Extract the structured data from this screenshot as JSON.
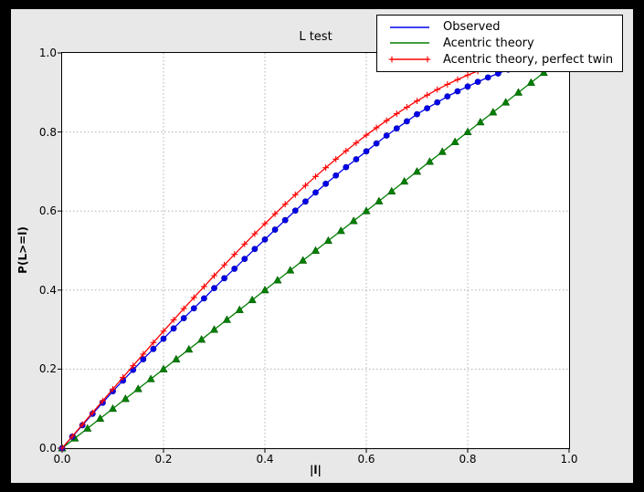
{
  "chart_data": {
    "type": "line",
    "title": "L test",
    "xlabel": "|l|",
    "ylabel": "P(L>=l)",
    "xlim": [
      0.0,
      1.0
    ],
    "ylim": [
      0.0,
      1.0
    ],
    "xticks": [
      "0.0",
      "0.2",
      "0.4",
      "0.6",
      "0.8",
      "1.0"
    ],
    "yticks": [
      "0.0",
      "0.2",
      "0.4",
      "0.6",
      "0.8",
      "1.0"
    ],
    "grid": true,
    "grid_style": "dotted",
    "legend_position": "upper right",
    "colors": {
      "observed": "#0000ee",
      "acentric_theory": "#007f00",
      "acentric_theory_perfect_twin": "#ff0000",
      "figure_background": "#e8e8e8",
      "axes_background": "#ffffff",
      "grid_color": "#b0b0b0",
      "outer_frame": "#000000"
    },
    "series": [
      {
        "name": "Acentric theory",
        "color": "#007f00",
        "marker": "triangle",
        "legend_marker": "none",
        "x": [
          0,
          0.025,
          0.05,
          0.075,
          0.1,
          0.125,
          0.15,
          0.175,
          0.2,
          0.225,
          0.25,
          0.275,
          0.3,
          0.325,
          0.35,
          0.375,
          0.4,
          0.425,
          0.45,
          0.475,
          0.5,
          0.525,
          0.55,
          0.575,
          0.6,
          0.625,
          0.65,
          0.675,
          0.7,
          0.725,
          0.75,
          0.775,
          0.8,
          0.825,
          0.85,
          0.875,
          0.9,
          0.925,
          0.95,
          0.975,
          1.0
        ],
        "y": [
          0,
          0.025,
          0.05,
          0.075,
          0.1,
          0.125,
          0.15,
          0.175,
          0.2,
          0.225,
          0.25,
          0.275,
          0.3,
          0.325,
          0.35,
          0.375,
          0.4,
          0.425,
          0.45,
          0.475,
          0.5,
          0.525,
          0.55,
          0.575,
          0.6,
          0.625,
          0.65,
          0.675,
          0.7,
          0.725,
          0.75,
          0.775,
          0.8,
          0.825,
          0.85,
          0.875,
          0.9,
          0.925,
          0.95,
          0.975,
          1.0
        ]
      },
      {
        "name": "Observed",
        "color": "#0000ee",
        "marker": "circle",
        "legend_marker": "none",
        "x": [
          0,
          0.02,
          0.04,
          0.06,
          0.08,
          0.1,
          0.12,
          0.14,
          0.16,
          0.18,
          0.2,
          0.22,
          0.24,
          0.26,
          0.28,
          0.3,
          0.32,
          0.34,
          0.36,
          0.38,
          0.4,
          0.42,
          0.44,
          0.46,
          0.48,
          0.5,
          0.52,
          0.54,
          0.56,
          0.58,
          0.6,
          0.62,
          0.64,
          0.66,
          0.68,
          0.7,
          0.72,
          0.74,
          0.76,
          0.78,
          0.8,
          0.82,
          0.84,
          0.86,
          0.88,
          0.9,
          0.92,
          0.94,
          0.96,
          0.98,
          1.0
        ],
        "y": [
          0,
          0.029,
          0.058,
          0.087,
          0.115,
          0.144,
          0.171,
          0.198,
          0.225,
          0.251,
          0.277,
          0.303,
          0.329,
          0.354,
          0.379,
          0.405,
          0.43,
          0.454,
          0.479,
          0.504,
          0.528,
          0.553,
          0.577,
          0.601,
          0.624,
          0.647,
          0.669,
          0.69,
          0.711,
          0.731,
          0.751,
          0.771,
          0.791,
          0.809,
          0.827,
          0.845,
          0.86,
          0.875,
          0.89,
          0.903,
          0.915,
          0.927,
          0.938,
          0.948,
          0.958,
          0.965,
          0.972,
          0.979,
          0.986,
          0.993,
          1.0
        ]
      },
      {
        "name": "Acentric theory, perfect twin",
        "color": "#ff0000",
        "marker": "plus",
        "legend_marker": "plus",
        "x": [
          0,
          0.02,
          0.04,
          0.06,
          0.08,
          0.1,
          0.12,
          0.14,
          0.16,
          0.18,
          0.2,
          0.22,
          0.24,
          0.26,
          0.28,
          0.3,
          0.32,
          0.34,
          0.36,
          0.38,
          0.4,
          0.42,
          0.44,
          0.46,
          0.48,
          0.5,
          0.52,
          0.54,
          0.56,
          0.58,
          0.6,
          0.62,
          0.64,
          0.66,
          0.68,
          0.7,
          0.72,
          0.74,
          0.76,
          0.78,
          0.8,
          0.82,
          0.84,
          0.86,
          0.88,
          0.9,
          0.92,
          0.94,
          0.96,
          0.98,
          1.0
        ],
        "y": [
          0,
          0.03,
          0.06,
          0.0899,
          0.1197,
          0.1495,
          0.1791,
          0.2086,
          0.238,
          0.2671,
          0.296,
          0.3247,
          0.3531,
          0.3812,
          0.409,
          0.4365,
          0.4636,
          0.4903,
          0.5167,
          0.5426,
          0.568,
          0.593,
          0.6174,
          0.6413,
          0.6647,
          0.6875,
          0.7097,
          0.7313,
          0.7522,
          0.7724,
          0.792,
          0.8108,
          0.8289,
          0.8463,
          0.8628,
          0.8785,
          0.8934,
          0.9074,
          0.9205,
          0.9327,
          0.944,
          0.9543,
          0.9636,
          0.972,
          0.9793,
          0.9855,
          0.9907,
          0.9947,
          0.9976,
          0.9994,
          1.0
        ]
      }
    ],
    "legend_order": [
      "Observed",
      "Acentric theory",
      "Acentric theory, perfect twin"
    ]
  }
}
